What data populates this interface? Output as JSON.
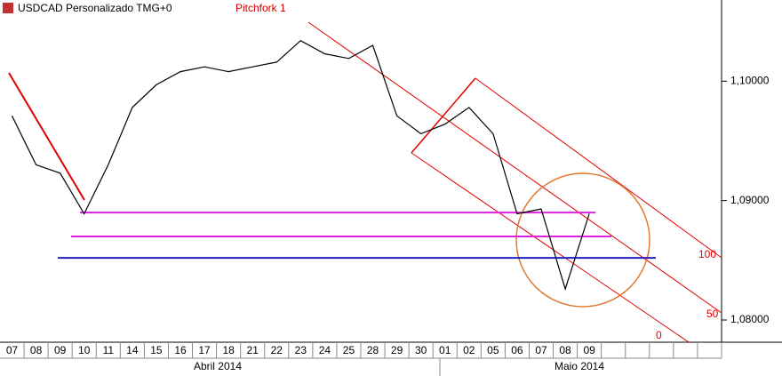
{
  "chart_data": {
    "type": "line",
    "title": "USDCAD Personalizado TMG+0",
    "subtitle": "Pitchfork 1",
    "categories": [
      "07",
      "08",
      "09",
      "10",
      "11",
      "14",
      "15",
      "16",
      "17",
      "18",
      "21",
      "22",
      "23",
      "24",
      "25",
      "28",
      "29",
      "30",
      "01",
      "02",
      "05",
      "06",
      "07",
      "08",
      "09",
      null,
      null,
      null,
      null,
      null
    ],
    "values": [
      1.0971,
      1.093,
      1.0923,
      1.0889,
      1.093,
      1.0978,
      1.0997,
      1.1008,
      1.1012,
      1.1008,
      1.1012,
      1.1016,
      1.1034,
      1.1023,
      1.1019,
      1.103,
      1.0971,
      1.0956,
      1.0964,
      1.0978,
      1.0956,
      1.0889,
      1.0893,
      1.0826,
      1.0889,
      null,
      null,
      null,
      null,
      null
    ],
    "color": "#000000",
    "months": [
      "Abril 2014",
      "Maio 2014"
    ],
    "ylim": [
      1.07814,
      1.1068
    ],
    "yticks": [
      {
        "value": 1.08,
        "label": "1,08000"
      },
      {
        "value": 1.09,
        "label": "1,09000"
      },
      {
        "value": 1.1,
        "label": "1,10000"
      }
    ],
    "levels": [
      {
        "value": 1.089,
        "color": "#e020e0"
      },
      {
        "value": 1.087,
        "color": "#e020e0"
      },
      {
        "value": 1.0852,
        "color": "#2020c0"
      }
    ],
    "pitchfork_labels": [
      "100",
      "50",
      "0"
    ]
  }
}
